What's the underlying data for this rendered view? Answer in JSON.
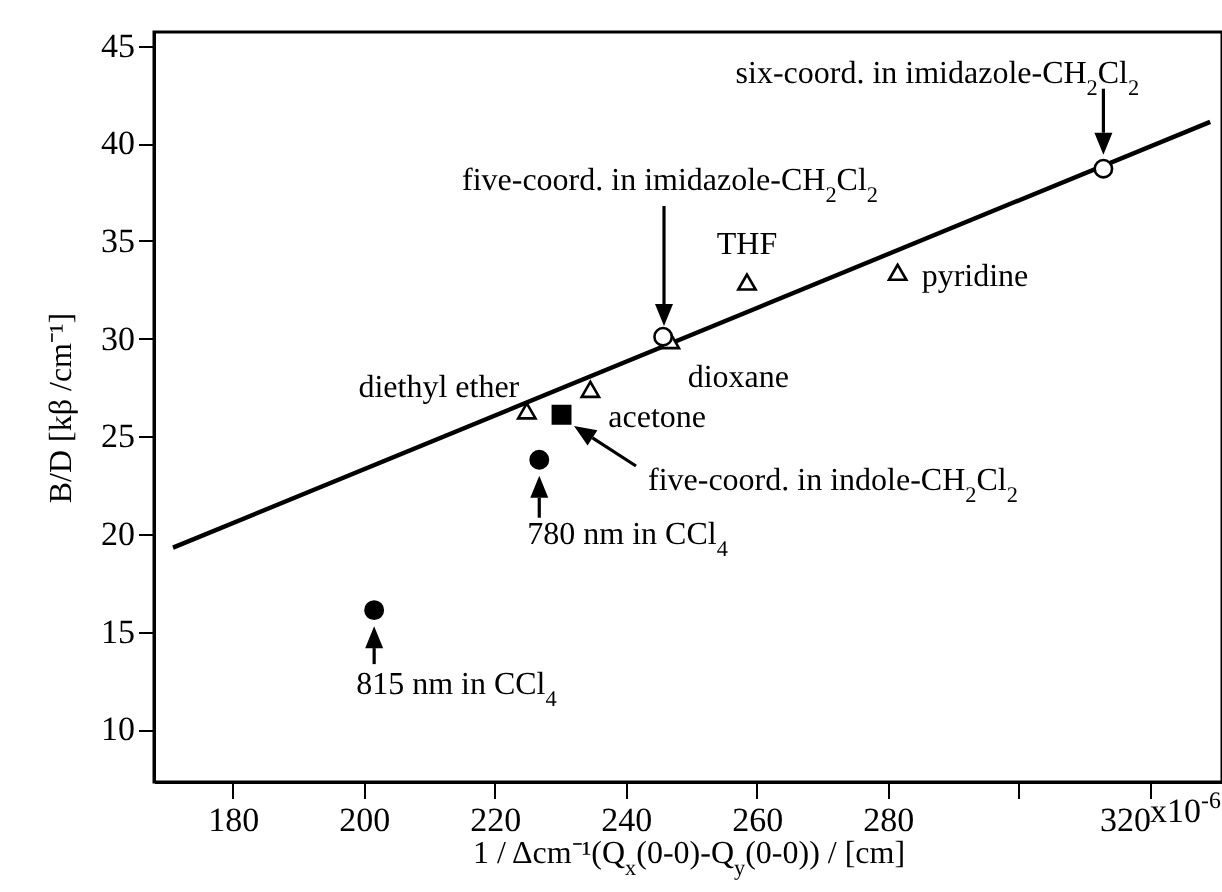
{
  "chart_data": {
    "type": "scatter",
    "xlabel": "1 / Δcm⁻¹(Q$_{x}$(0-0)-Q$_{y}$(0-0))  / [cm]",
    "ylabel": "B/D [kβ /cm⁻¹]",
    "xlim": [
      168,
      331
    ],
    "ylim": [
      7.3,
      45.7
    ],
    "xticks": [
      180,
      200,
      220,
      240,
      260,
      280,
      {
        "value": 300,
        "label": null
      },
      320
    ],
    "yticks": [
      10,
      15,
      20,
      25,
      30,
      35,
      40,
      45
    ],
    "series": [
      {
        "type": "line",
        "color": "#000000",
        "marker": "none",
        "x": [
          170.9,
          329.2
        ],
        "values": [
          19.3,
          41.1
        ]
      },
      {
        "color": "#ffffff",
        "marker": "triangle",
        "x": [
          224.9,
          234.6,
          246.8,
          258.5,
          281.5
        ],
        "values": [
          26.3,
          27.4,
          29.9,
          32.9,
          33.4
        ]
      },
      {
        "color": "#ffffff",
        "marker": "circle",
        "x": [
          245.7,
          312.9
        ],
        "values": [
          30.1,
          38.7
        ]
      },
      {
        "color": "#000000",
        "marker": "circle",
        "x": [
          201.6,
          226.8
        ],
        "values": [
          16.1,
          23.8
        ]
      },
      {
        "color": "#000000",
        "marker": "square",
        "x": [
          230.2
        ],
        "values": [
          26.1
        ]
      }
    ],
    "annotations": [
      {
        "text": "six-coord. in imidazole-CH$_{2}$Cl$_{2}$",
        "x": 312.9,
        "y": 38.7
      },
      "five-coord. in imidazole-CH$_{2}$Cl$_{2}$",
      {
        "text": "THF",
        "x": 258.5,
        "y": 32.9
      },
      {
        "text": "pyridine",
        "x": 281.5,
        "y": 33.4
      },
      {
        "text": "dioxane",
        "x": 246.8,
        "y": 29.9
      },
      {
        "text": "diethyl ether",
        "x": 224.9,
        "y": 26.3
      },
      {
        "text": "acetone",
        "x": 234.6,
        "y": 27.4
      },
      "five-coord. in indole-CH$_{2}$Cl$_{2}$",
      {
        "text": "780 nm in CCl$_{4}$",
        "x": 226.8,
        "y": 23.8
      },
      {
        "text": "815 nm in CCl$_{4}$",
        "x": 201.6,
        "y": 16.1
      },
      "x10$^{-6}$"
    ]
  }
}
